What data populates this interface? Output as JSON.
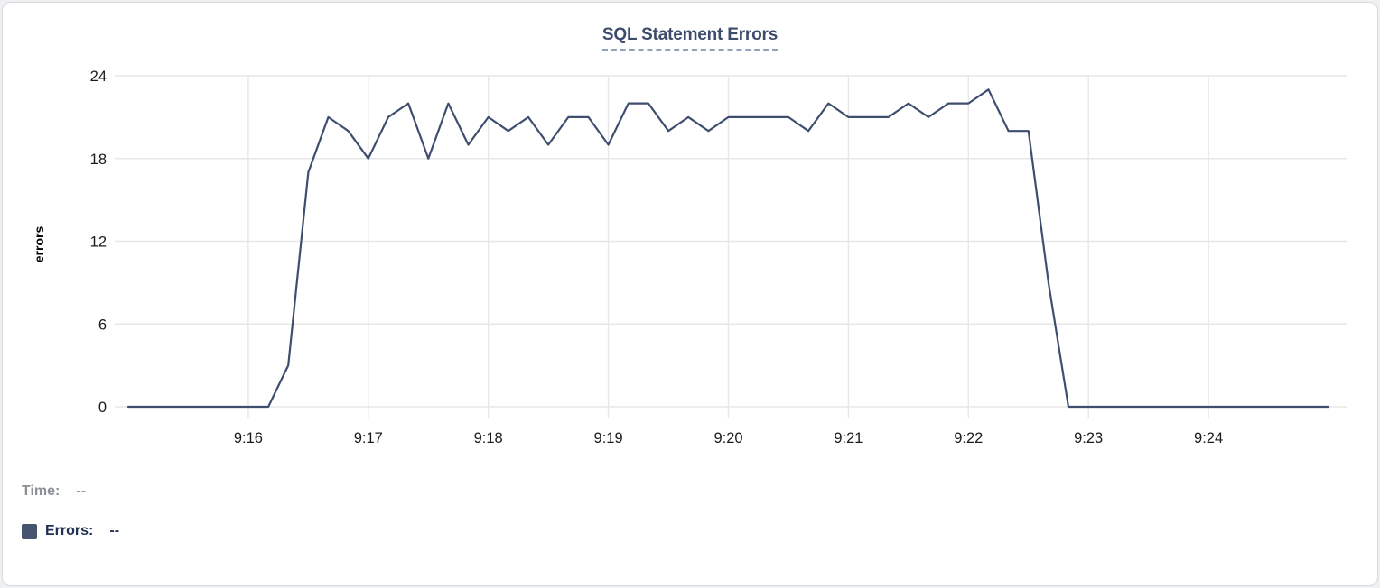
{
  "chart_data": {
    "type": "line",
    "title": "SQL Statement Errors",
    "ylabel": "errors",
    "xlabel": "",
    "ylim": [
      0,
      24
    ],
    "y_ticks": [
      0,
      6,
      12,
      18,
      24
    ],
    "x_tick_labels": [
      "9:16",
      "9:17",
      "9:18",
      "9:19",
      "9:20",
      "9:21",
      "9:22",
      "9:23",
      "9:24"
    ],
    "x_start": "9:15:00",
    "x_end": "9:25:00",
    "x_interval_seconds": 10,
    "grid": true,
    "legend_position": "bottom-left",
    "series": [
      {
        "name": "Errors",
        "color": "#3f4e6e",
        "values": [
          0,
          0,
          0,
          0,
          0,
          0,
          0,
          0,
          3,
          17,
          21,
          20,
          18,
          21,
          22,
          18,
          22,
          19,
          21,
          20,
          21,
          19,
          21,
          21,
          19,
          22,
          22,
          20,
          21,
          20,
          21,
          21,
          21,
          21,
          20,
          22,
          21,
          21,
          21,
          22,
          21,
          22,
          22,
          23,
          20,
          20,
          9,
          0,
          0,
          0,
          0,
          0,
          0,
          0,
          0,
          0,
          0,
          0,
          0,
          0,
          0
        ]
      }
    ]
  },
  "tooltip": {
    "time_label": "Time:",
    "time_value": "--",
    "errors_label": "Errors:",
    "errors_value": "--"
  },
  "colors": {
    "line": "#3f4e6e",
    "title": "#3d4c6c",
    "title_underline": "#93a1bb",
    "grid": "#e7e7e7",
    "tick_text": "#1b1b1b",
    "axis_label": "#000000",
    "time_text": "#8a9097",
    "errors_text": "#233055",
    "swatch": "#46546f",
    "card_border": "#d6d9de",
    "card_bg": "#ffffff"
  }
}
